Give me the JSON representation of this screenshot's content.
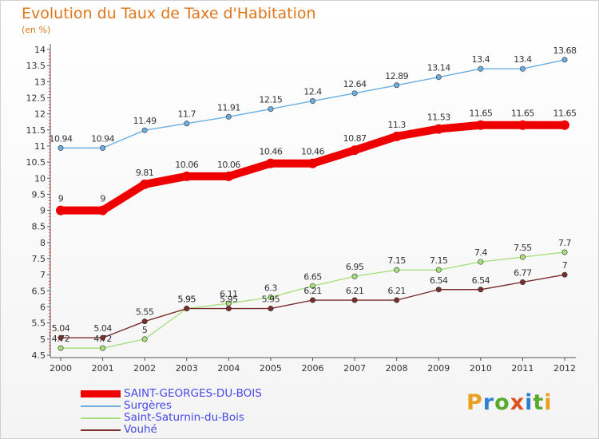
{
  "header": {
    "title": "Evolution du Taux de Taxe d'Habitation",
    "subtitle": "(en %)"
  },
  "logo": {
    "text": "Proxiti",
    "colors": [
      "#e8a020",
      "#3080d0",
      "#5aaa30",
      "#e05020",
      "#3080d0",
      "#5aaa30",
      "#e8a020"
    ]
  },
  "chart_data": {
    "type": "line",
    "x": [
      2000,
      2001,
      2002,
      2003,
      2004,
      2005,
      2006,
      2007,
      2008,
      2009,
      2010,
      2011,
      2012
    ],
    "ylim": [
      4.5,
      14
    ],
    "yticks": [
      4.5,
      5,
      5.5,
      6,
      6.5,
      7,
      7.5,
      8,
      8.5,
      9,
      9.5,
      10,
      10.5,
      11,
      11.5,
      12,
      12.5,
      13,
      13.5,
      14
    ],
    "ytick_labels": [
      "4.5",
      "5",
      "5.5",
      "6",
      "6.5",
      "7",
      "7.5",
      "8",
      "8.5",
      "9",
      "9.5",
      "10",
      "10.5",
      "11",
      "11.5",
      "12",
      "12.5",
      "13",
      "13.5",
      "14"
    ],
    "grid": false,
    "legend_position": "bottom-left",
    "series": [
      {
        "name": "SAINT-GEORGES-DU-BOIS",
        "color": "#ee0000",
        "values": [
          9,
          9,
          9.81,
          10.06,
          10.06,
          10.46,
          10.46,
          10.87,
          11.3,
          11.53,
          11.65,
          11.65,
          11.65
        ],
        "labels": [
          "9",
          "9",
          "9.81",
          "10.06",
          "10.06",
          "10.46",
          "10.46",
          "10.87",
          "11.3",
          "11.53",
          "11.65",
          "11.65",
          "11.65"
        ]
      },
      {
        "name": "Surgères",
        "color": "#6aaee0",
        "values": [
          10.94,
          10.94,
          11.49,
          11.7,
          11.91,
          12.15,
          12.4,
          12.64,
          12.89,
          13.14,
          13.4,
          13.4,
          13.68
        ],
        "labels": [
          "10.94",
          "10.94",
          "11.49",
          "11.7",
          "11.91",
          "12.15",
          "12.4",
          "12.64",
          "12.89",
          "13.14",
          "13.4",
          "13.4",
          "13.68"
        ]
      },
      {
        "name": "Saint-Saturnin-du-Bois",
        "color": "#a8e080",
        "values": [
          4.72,
          4.72,
          5,
          5.95,
          6.11,
          6.3,
          6.65,
          6.95,
          7.15,
          7.15,
          7.4,
          7.55,
          7.7
        ],
        "labels": [
          "4.72",
          "4.72",
          "5",
          "5.95",
          "6.11",
          "6.3",
          "6.65",
          "6.95",
          "7.15",
          "7.15",
          "7.4",
          "7.55",
          "7.7"
        ]
      },
      {
        "name": "Vouhé",
        "color": "#7a2e2e",
        "values": [
          5.04,
          5.04,
          5.55,
          5.95,
          5.95,
          5.95,
          6.21,
          6.21,
          6.21,
          6.54,
          6.54,
          6.77,
          7
        ],
        "labels": [
          "5.04",
          "5.04",
          "5.55",
          "5.95",
          "5.95",
          "5.95",
          "6.21",
          "6.21",
          "6.21",
          "6.54",
          "6.54",
          "6.77",
          "7"
        ]
      }
    ]
  }
}
